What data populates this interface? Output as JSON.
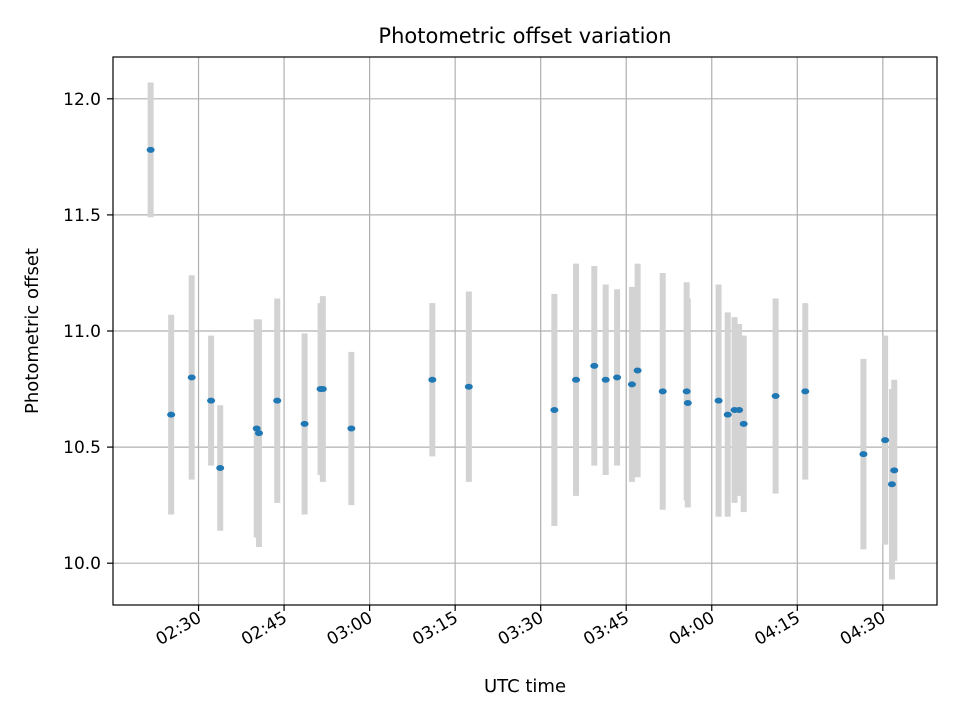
{
  "chart_data": {
    "type": "scatter",
    "title": "Photometric offset variation",
    "xlabel": "UTC time",
    "ylabel": "Photometric offset",
    "xlim": [
      "02:15:00",
      "04:39:30"
    ],
    "ylim": [
      9.82,
      12.18
    ],
    "x_ticks": [
      "02:30",
      "02:45",
      "03:00",
      "03:15",
      "03:30",
      "03:45",
      "04:00",
      "04:15",
      "04:30"
    ],
    "y_ticks": [
      "10.0",
      "10.5",
      "11.0",
      "11.5",
      "12.0"
    ],
    "grid": true,
    "colors": {
      "point": "#1f77b4",
      "errorbar": "#d3d3d3",
      "grid": "#b0b0b0"
    },
    "points": [
      {
        "t": "02:21:36",
        "y": 11.78,
        "err": 0.29
      },
      {
        "t": "02:25:12",
        "y": 10.64,
        "err": 0.43
      },
      {
        "t": "02:28:48",
        "y": 10.8,
        "err": 0.44
      },
      {
        "t": "02:32:12",
        "y": 10.7,
        "err": 0.28
      },
      {
        "t": "02:33:48",
        "y": 10.41,
        "err": 0.27
      },
      {
        "t": "02:40:12",
        "y": 10.58,
        "err": 0.47
      },
      {
        "t": "02:40:36",
        "y": 10.56,
        "err": 0.49
      },
      {
        "t": "02:43:48",
        "y": 10.7,
        "err": 0.44
      },
      {
        "t": "02:48:36",
        "y": 10.6,
        "err": 0.39
      },
      {
        "t": "02:51:24",
        "y": 10.75,
        "err": 0.37
      },
      {
        "t": "02:51:48",
        "y": 10.75,
        "err": 0.4
      },
      {
        "t": "02:56:48",
        "y": 10.58,
        "err": 0.33
      },
      {
        "t": "03:11:00",
        "y": 10.79,
        "err": 0.33
      },
      {
        "t": "03:17:24",
        "y": 10.76,
        "err": 0.41
      },
      {
        "t": "03:32:24",
        "y": 10.66,
        "err": 0.5
      },
      {
        "t": "03:36:12",
        "y": 10.79,
        "err": 0.5
      },
      {
        "t": "03:39:24",
        "y": 10.85,
        "err": 0.43
      },
      {
        "t": "03:41:24",
        "y": 10.79,
        "err": 0.41
      },
      {
        "t": "03:43:24",
        "y": 10.8,
        "err": 0.38
      },
      {
        "t": "03:46:00",
        "y": 10.77,
        "err": 0.42
      },
      {
        "t": "03:47:00",
        "y": 10.83,
        "err": 0.46
      },
      {
        "t": "03:51:24",
        "y": 10.74,
        "err": 0.51
      },
      {
        "t": "03:55:36",
        "y": 10.74,
        "err": 0.47
      },
      {
        "t": "03:55:48",
        "y": 10.69,
        "err": 0.45
      },
      {
        "t": "04:01:12",
        "y": 10.7,
        "err": 0.5
      },
      {
        "t": "04:02:48",
        "y": 10.64,
        "err": 0.44
      },
      {
        "t": "04:04:00",
        "y": 10.66,
        "err": 0.4
      },
      {
        "t": "04:04:48",
        "y": 10.66,
        "err": 0.37
      },
      {
        "t": "04:05:36",
        "y": 10.6,
        "err": 0.38
      },
      {
        "t": "04:11:12",
        "y": 10.72,
        "err": 0.42
      },
      {
        "t": "04:16:24",
        "y": 10.74,
        "err": 0.38
      },
      {
        "t": "04:26:36",
        "y": 10.47,
        "err": 0.41
      },
      {
        "t": "04:30:24",
        "y": 10.53,
        "err": 0.45
      },
      {
        "t": "04:31:36",
        "y": 10.34,
        "err": 0.41
      },
      {
        "t": "04:32:00",
        "y": 10.4,
        "err": 0.39
      }
    ]
  }
}
